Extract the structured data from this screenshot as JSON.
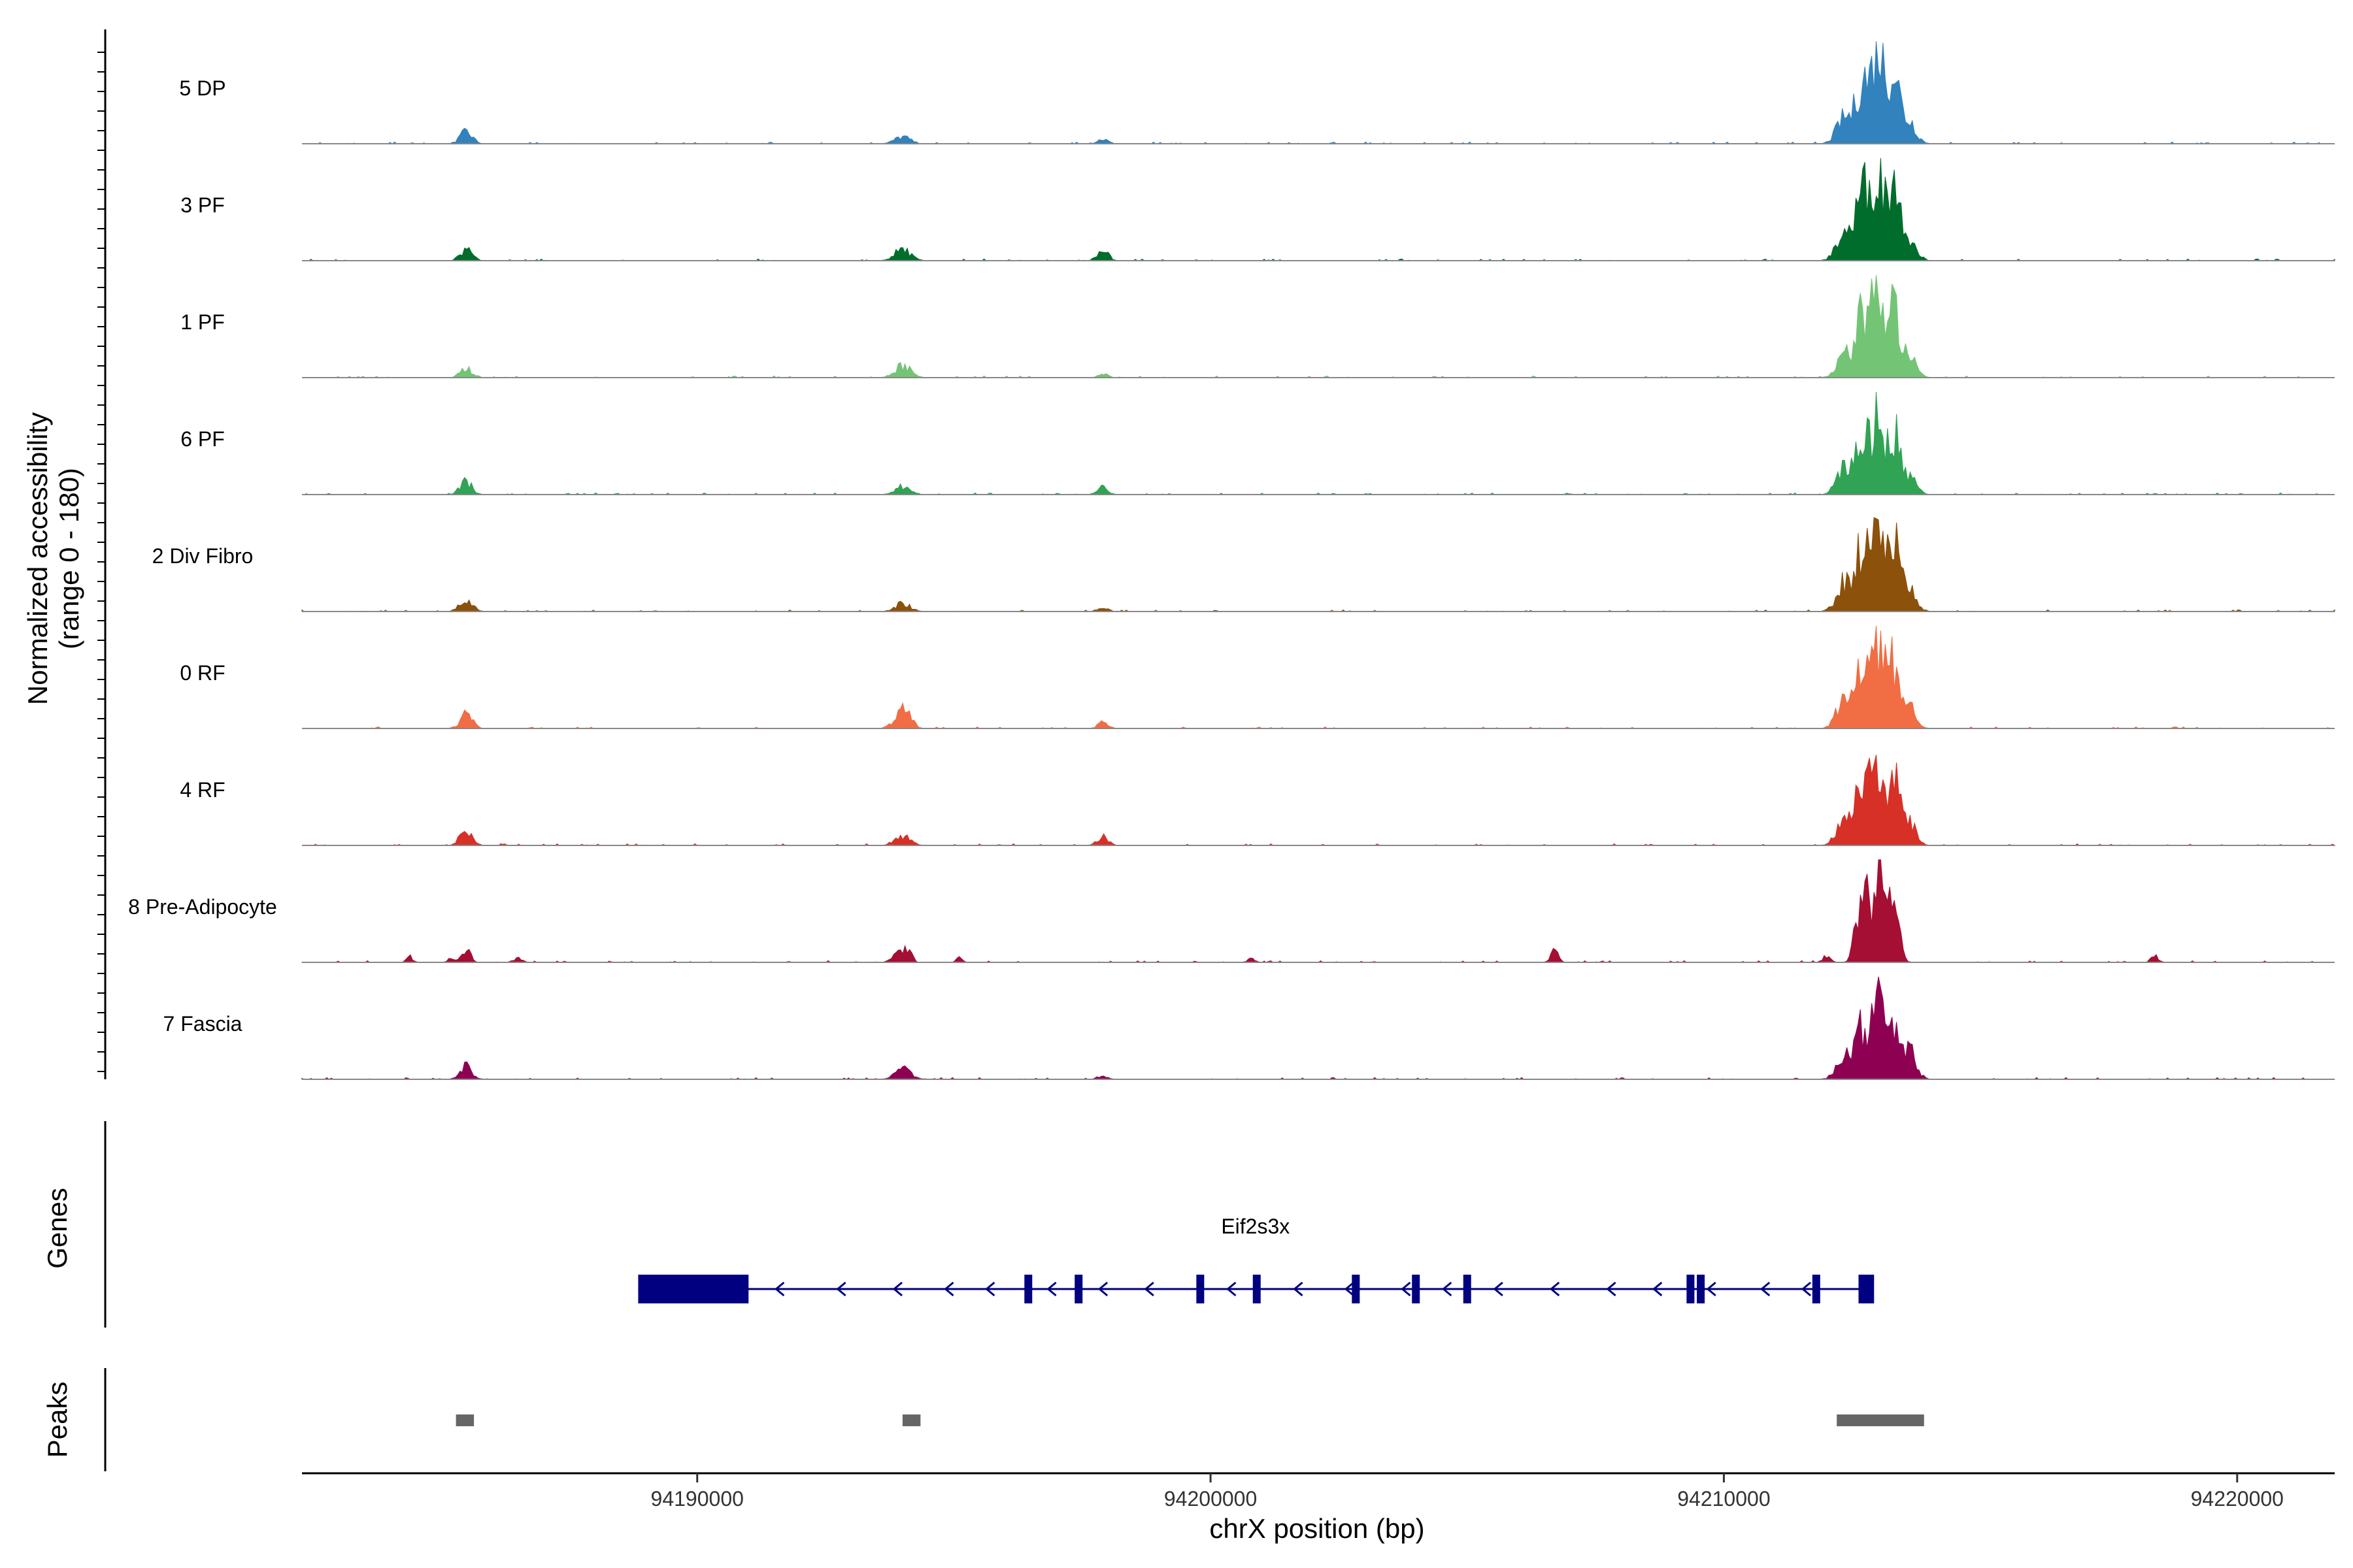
{
  "chart_data": {
    "type": "area",
    "title": "",
    "xlabel": "chrX position (bp)",
    "ylabel_line1": "Normalized accessibility",
    "ylabel_line2": "(range 0 - 180)",
    "ylim": [
      0,
      180
    ],
    "xlim": [
      94182300,
      94221900
    ],
    "x_ticks": [
      94190000,
      94200000,
      94210000,
      94220000
    ],
    "x_tick_labels": [
      "94190000",
      "94200000",
      "94210000",
      "94220000"
    ],
    "genes_label": "Genes",
    "peaks_label": "Peaks",
    "tracks": [
      {
        "name": "5 DP",
        "color": "#3182bd",
        "peaks": [
          [
            94185500,
            20,
            120
          ],
          [
            94194000,
            12,
            150
          ],
          [
            94197900,
            8,
            100
          ],
          [
            94212350,
            45,
            150
          ],
          [
            94212700,
            110,
            120
          ],
          [
            94213000,
            170,
            110
          ],
          [
            94213300,
            130,
            110
          ],
          [
            94213600,
            40,
            140
          ]
        ]
      },
      {
        "name": "3 PF",
        "color": "#006d2c",
        "peaks": [
          [
            94185500,
            18,
            120
          ],
          [
            94194000,
            20,
            150
          ],
          [
            94197900,
            22,
            100
          ],
          [
            94212350,
            50,
            150
          ],
          [
            94212700,
            120,
            120
          ],
          [
            94213000,
            165,
            110
          ],
          [
            94213300,
            140,
            110
          ],
          [
            94213600,
            45,
            140
          ]
        ]
      },
      {
        "name": "1 PF",
        "color": "#74c476",
        "peaks": [
          [
            94185500,
            16,
            120
          ],
          [
            94194000,
            22,
            150
          ],
          [
            94197900,
            6,
            100
          ],
          [
            94212350,
            40,
            150
          ],
          [
            94212700,
            110,
            120
          ],
          [
            94213000,
            160,
            110
          ],
          [
            94213300,
            120,
            110
          ],
          [
            94213600,
            35,
            140
          ]
        ]
      },
      {
        "name": "6 PF",
        "color": "#31a354",
        "peaks": [
          [
            94185500,
            22,
            120
          ],
          [
            94194000,
            14,
            150
          ],
          [
            94197900,
            14,
            100
          ],
          [
            94212350,
            45,
            150
          ],
          [
            94212700,
            95,
            120
          ],
          [
            94213000,
            130,
            110
          ],
          [
            94213300,
            105,
            110
          ],
          [
            94213600,
            35,
            140
          ]
        ]
      },
      {
        "name": "2 Div Fibro",
        "color": "#8c510a",
        "peaks": [
          [
            94185500,
            22,
            120
          ],
          [
            94194000,
            14,
            150
          ],
          [
            94197900,
            8,
            100
          ],
          [
            94212350,
            50,
            150
          ],
          [
            94212700,
            110,
            120
          ],
          [
            94213000,
            150,
            110
          ],
          [
            94213300,
            120,
            110
          ],
          [
            94213600,
            40,
            140
          ]
        ]
      },
      {
        "name": "0 RF",
        "color": "#f16d43",
        "peaks": [
          [
            94185500,
            24,
            120
          ],
          [
            94194000,
            33,
            150
          ],
          [
            94197900,
            10,
            100
          ],
          [
            94212350,
            50,
            150
          ],
          [
            94212700,
            105,
            120
          ],
          [
            94213000,
            145,
            110
          ],
          [
            94213300,
            110,
            110
          ],
          [
            94213600,
            40,
            140
          ]
        ]
      },
      {
        "name": "4 RF",
        "color": "#d73027",
        "peaks": [
          [
            94185500,
            26,
            120
          ],
          [
            94194000,
            18,
            150
          ],
          [
            94197900,
            16,
            100
          ],
          [
            94212350,
            50,
            150
          ],
          [
            94212700,
            120,
            120
          ],
          [
            94213000,
            150,
            110
          ],
          [
            94213300,
            110,
            110
          ],
          [
            94213600,
            40,
            140
          ]
        ]
      },
      {
        "name": "8 Pre-Adipocyte",
        "color": "#a50f33",
        "peaks": [
          [
            94184400,
            10,
            60
          ],
          [
            94185200,
            10,
            60
          ],
          [
            94185500,
            28,
            80
          ],
          [
            94186500,
            8,
            80
          ],
          [
            94193900,
            14,
            120
          ],
          [
            94194100,
            20,
            80
          ],
          [
            94195100,
            10,
            60
          ],
          [
            94200800,
            6,
            80
          ],
          [
            94206700,
            18,
            80
          ],
          [
            94212000,
            10,
            80
          ],
          [
            94212700,
            140,
            110
          ],
          [
            94213000,
            160,
            100
          ],
          [
            94213300,
            140,
            100
          ],
          [
            94218400,
            10,
            80
          ]
        ]
      },
      {
        "name": "7 Fascia",
        "color": "#8e0152",
        "peaks": [
          [
            94185500,
            22,
            120
          ],
          [
            94194000,
            18,
            150
          ],
          [
            94197900,
            6,
            100
          ],
          [
            94212350,
            40,
            150
          ],
          [
            94212700,
            90,
            120
          ],
          [
            94213000,
            130,
            110
          ],
          [
            94213300,
            80,
            110
          ],
          [
            94213600,
            50,
            140
          ]
        ]
      }
    ],
    "gene": {
      "name": "Eif2s3x",
      "start": 94188850,
      "end": 94212900,
      "strand": "-",
      "thick_blocks": [
        [
          94188850,
          94191000
        ]
      ],
      "exons": [
        94196450,
        94197430,
        94199800,
        94200900,
        94202830,
        94204000,
        94205000,
        94209350,
        94209550,
        94211800,
        94212700,
        94212850
      ],
      "arrows": [
        94191600,
        94192800,
        94193900,
        94194900,
        94195700,
        94196900,
        94197900,
        94198800,
        94200400,
        94201700,
        94202700,
        94203800,
        94204600,
        94205600,
        94206700,
        94207800,
        94208700,
        94209750,
        94210800,
        94211600
      ]
    },
    "peak_regions": [
      [
        94185300,
        94185650
      ],
      [
        94194000,
        94194350
      ],
      [
        94212200,
        94213900
      ]
    ]
  }
}
